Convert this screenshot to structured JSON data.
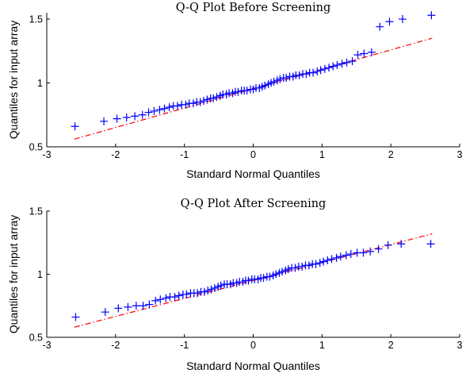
{
  "chart_data": [
    {
      "type": "scatter",
      "title": "Q-Q Plot Before Screening",
      "xlabel": "Standard Normal Quantiles",
      "ylabel": "Quantiles for input array",
      "xlim": [
        -3,
        3
      ],
      "ylim": [
        0.5,
        1.55
      ],
      "xticks": [
        "-3",
        "-2",
        "-1",
        "0",
        "1",
        "2",
        "3"
      ],
      "yticks": [
        "0.5",
        "1",
        "1.5"
      ],
      "grid": false,
      "colors": {
        "points": "#0000ff",
        "reference_line": "#ff0000"
      },
      "reference_line": {
        "x": [
          -2.6,
          2.6
        ],
        "y": [
          0.56,
          1.35
        ]
      },
      "x": [
        -2.59,
        -2.17,
        -1.98,
        -1.84,
        -1.72,
        -1.61,
        -1.52,
        -1.44,
        -1.36,
        -1.29,
        -1.22,
        -1.16,
        -1.1,
        -1.04,
        -0.98,
        -0.93,
        -0.87,
        -0.82,
        -0.77,
        -0.72,
        -0.67,
        -0.62,
        -0.58,
        -0.53,
        -0.48,
        -0.44,
        -0.39,
        -0.35,
        -0.3,
        -0.26,
        -0.22,
        -0.17,
        -0.13,
        -0.09,
        -0.04,
        0.0,
        0.04,
        0.09,
        0.13,
        0.17,
        0.22,
        0.26,
        0.3,
        0.35,
        0.39,
        0.44,
        0.48,
        0.53,
        0.58,
        0.62,
        0.67,
        0.72,
        0.77,
        0.82,
        0.87,
        0.93,
        0.98,
        1.04,
        1.1,
        1.16,
        1.22,
        1.29,
        1.36,
        1.44,
        1.52,
        1.61,
        1.72,
        1.84,
        1.98,
        2.17,
        2.59
      ],
      "y": [
        0.66,
        0.7,
        0.72,
        0.73,
        0.74,
        0.75,
        0.77,
        0.78,
        0.79,
        0.8,
        0.81,
        0.82,
        0.82,
        0.83,
        0.83,
        0.84,
        0.84,
        0.85,
        0.85,
        0.86,
        0.87,
        0.88,
        0.88,
        0.89,
        0.9,
        0.91,
        0.91,
        0.92,
        0.92,
        0.93,
        0.93,
        0.94,
        0.94,
        0.94,
        0.95,
        0.95,
        0.96,
        0.96,
        0.97,
        0.98,
        0.99,
        1.0,
        1.01,
        1.02,
        1.03,
        1.04,
        1.04,
        1.05,
        1.05,
        1.06,
        1.06,
        1.07,
        1.07,
        1.08,
        1.08,
        1.09,
        1.1,
        1.11,
        1.12,
        1.13,
        1.14,
        1.15,
        1.16,
        1.17,
        1.22,
        1.23,
        1.24,
        1.44,
        1.48,
        1.5,
        1.53
      ]
    },
    {
      "type": "scatter",
      "title": "Q-Q Plot After Screening",
      "xlabel": "Standard Normal Quantiles",
      "ylabel": "Quantiles for input array",
      "xlim": [
        -3,
        3
      ],
      "ylim": [
        0.5,
        1.5
      ],
      "xticks": [
        "-3",
        "-2",
        "-1",
        "0",
        "1",
        "2",
        "3"
      ],
      "yticks": [
        "0.5",
        "1",
        "1.5"
      ],
      "grid": false,
      "colors": {
        "points": "#0000ff",
        "reference_line": "#ff0000"
      },
      "reference_line": {
        "x": [
          -2.6,
          2.6
        ],
        "y": [
          0.58,
          1.32
        ]
      },
      "x": [
        -2.58,
        -2.15,
        -1.96,
        -1.82,
        -1.7,
        -1.6,
        -1.51,
        -1.42,
        -1.35,
        -1.27,
        -1.21,
        -1.14,
        -1.08,
        -1.02,
        -0.97,
        -0.91,
        -0.86,
        -0.81,
        -0.76,
        -0.71,
        -0.66,
        -0.61,
        -0.56,
        -0.51,
        -0.47,
        -0.42,
        -0.38,
        -0.33,
        -0.29,
        -0.24,
        -0.2,
        -0.15,
        -0.11,
        -0.07,
        -0.02,
        0.02,
        0.07,
        0.11,
        0.15,
        0.2,
        0.24,
        0.29,
        0.33,
        0.38,
        0.42,
        0.47,
        0.51,
        0.56,
        0.61,
        0.66,
        0.71,
        0.76,
        0.81,
        0.86,
        0.91,
        0.97,
        1.02,
        1.08,
        1.14,
        1.21,
        1.27,
        1.35,
        1.42,
        1.51,
        1.6,
        1.7,
        1.82,
        1.96,
        2.15,
        2.58
      ],
      "y": [
        0.66,
        0.7,
        0.73,
        0.74,
        0.75,
        0.75,
        0.76,
        0.79,
        0.8,
        0.81,
        0.82,
        0.82,
        0.83,
        0.84,
        0.84,
        0.85,
        0.85,
        0.85,
        0.86,
        0.86,
        0.87,
        0.88,
        0.89,
        0.9,
        0.91,
        0.92,
        0.92,
        0.92,
        0.93,
        0.93,
        0.94,
        0.94,
        0.95,
        0.95,
        0.96,
        0.96,
        0.96,
        0.97,
        0.97,
        0.98,
        0.98,
        0.99,
        1.0,
        1.01,
        1.02,
        1.03,
        1.04,
        1.05,
        1.05,
        1.06,
        1.06,
        1.07,
        1.07,
        1.08,
        1.08,
        1.09,
        1.1,
        1.11,
        1.12,
        1.13,
        1.14,
        1.15,
        1.16,
        1.17,
        1.17,
        1.18,
        1.2,
        1.23,
        1.24,
        1.24
      ]
    }
  ]
}
